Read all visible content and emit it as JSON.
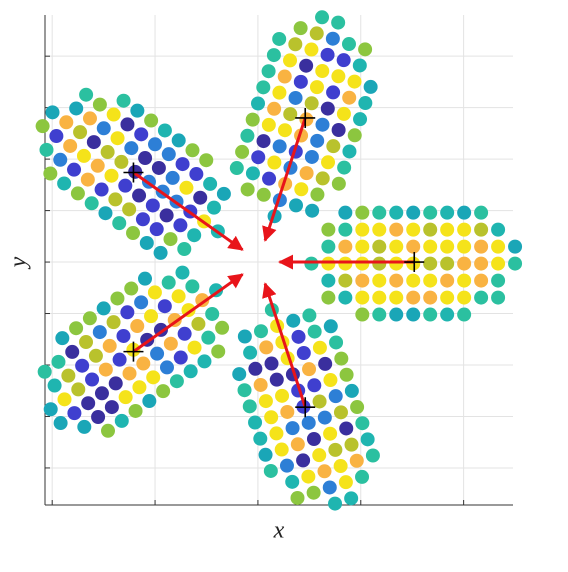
{
  "chart_data": {
    "type": "scatter",
    "xlabel": "x",
    "ylabel": "y",
    "xlim": [
      -2.07,
      2.48
    ],
    "ylim": [
      -2.36,
      2.4
    ],
    "xticks": [
      -2,
      -1,
      0,
      1,
      2
    ],
    "yticks": [
      -2,
      -1.5,
      -1,
      -0.5,
      0,
      0.5,
      1,
      1.5,
      2
    ],
    "grid": true,
    "clusters": [
      {
        "center": [
          1.52,
          0
        ],
        "length": 2.0,
        "width": 1.02
      },
      {
        "center": [
          0.46,
          1.4
        ],
        "length": 2.0,
        "width": 1.02
      },
      {
        "center": [
          -1.21,
          0.87
        ],
        "length": 2.0,
        "width": 1.02
      },
      {
        "center": [
          -1.21,
          -0.87
        ],
        "length": 2.0,
        "width": 1.02
      },
      {
        "center": [
          0.46,
          -1.41
        ],
        "length": 2.0,
        "width": 1.02
      }
    ],
    "arrows": [
      {
        "from": [
          1.52,
          0
        ],
        "to": [
          0.21,
          0
        ]
      },
      {
        "from": [
          0.46,
          1.4
        ],
        "to": [
          0.07,
          0.21
        ]
      },
      {
        "from": [
          -1.21,
          0.87
        ],
        "to": [
          -0.15,
          0.12
        ]
      },
      {
        "from": [
          -1.21,
          -0.87
        ],
        "to": [
          -0.15,
          -0.12
        ]
      },
      {
        "from": [
          0.46,
          -1.41
        ],
        "to": [
          0.07,
          -0.21
        ]
      }
    ]
  }
}
